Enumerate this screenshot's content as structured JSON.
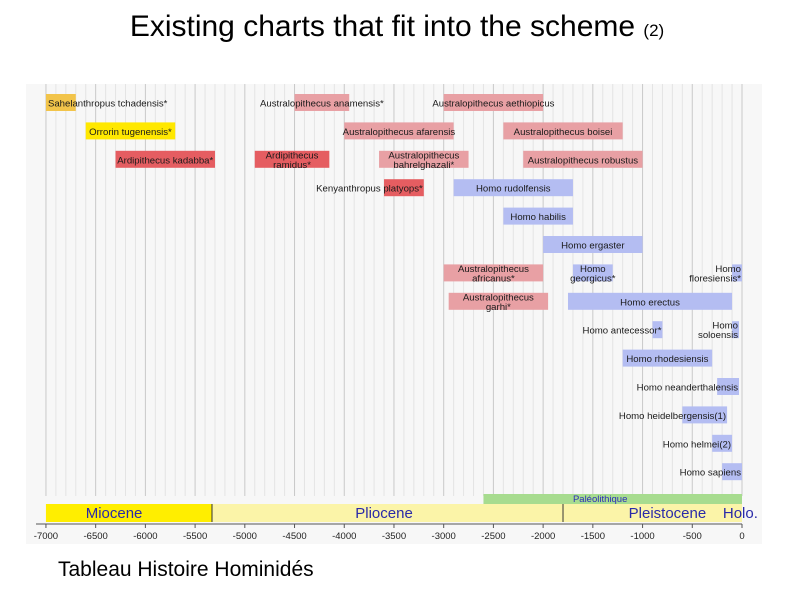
{
  "title": "Existing charts that fit into the scheme",
  "title_note": "(2)",
  "caption": "Tableau Histoire Hominidés",
  "chart_data": {
    "type": "timeline",
    "xlim": [
      -7100,
      0
    ],
    "grid": true,
    "x_ticks": [
      -7000,
      -6500,
      -6000,
      -5500,
      -5000,
      -4500,
      -4000,
      -3500,
      -3000,
      -2500,
      -2000,
      -1500,
      -1000,
      -500,
      0
    ],
    "colors": {
      "early_hominin": "#f2c44a",
      "orrorin": "#ffe800",
      "australopith": "#e8a0a4",
      "australopith_dark": "#e55d61",
      "homo": "#b4bdf2",
      "epoch_miocene": "#ffee00",
      "epoch_light": "#fbf4a8",
      "paleolithic": "#a7dc8f"
    },
    "species": [
      {
        "label": "Sahelanthropus tchadensis*",
        "start": -7000,
        "end": -6700,
        "row": 0,
        "color": "early_hominin",
        "align": "start"
      },
      {
        "label": "Australopithecus anamensis*",
        "start": -4500,
        "end": -3950,
        "row": 0,
        "color": "australopith",
        "align": "middle"
      },
      {
        "label": "Australopithecus aethiopicus",
        "start": -3000,
        "end": -2000,
        "row": 0,
        "color": "australopith",
        "align": "middle"
      },
      {
        "label": "Orrorin tugenensis*",
        "start": -6600,
        "end": -5700,
        "row": 1,
        "color": "orrorin",
        "align": "middle"
      },
      {
        "label": "Australopithecus afarensis",
        "start": -4000,
        "end": -2900,
        "row": 1,
        "color": "australopith",
        "align": "middle"
      },
      {
        "label": "Australopithecus boisei",
        "start": -2400,
        "end": -1200,
        "row": 1,
        "color": "australopith",
        "align": "middle"
      },
      {
        "label": "Ardipithecus kadabba*",
        "start": -6300,
        "end": -5300,
        "row": 2,
        "color": "australopith_dark",
        "align": "middle"
      },
      {
        "label": "Ardipithecus",
        "label2": "ramidus*",
        "start": -4900,
        "end": -4150,
        "row": 2,
        "color": "australopith_dark",
        "align": "middle"
      },
      {
        "label": "Australopithecus",
        "label2": "bahrelghazali*",
        "start": -3650,
        "end": -2750,
        "row": 2,
        "color": "australopith",
        "align": "middle"
      },
      {
        "label": "Australopithecus robustus",
        "start": -2200,
        "end": -1000,
        "row": 2,
        "color": "australopith",
        "align": "middle"
      },
      {
        "label": "Kenyanthropus platyops*",
        "start": -3600,
        "end": -3200,
        "row": 3,
        "color": "australopith_dark",
        "align": "end"
      },
      {
        "label": "Homo rudolfensis",
        "start": -2900,
        "end": -1700,
        "row": 3,
        "color": "homo",
        "align": "middle"
      },
      {
        "label": "Homo habilis",
        "start": -2400,
        "end": -1700,
        "row": 4,
        "color": "homo",
        "align": "middle"
      },
      {
        "label": "Homo ergaster",
        "start": -2000,
        "end": -1000,
        "row": 5,
        "color": "homo",
        "align": "middle"
      },
      {
        "label": "Australopithecus",
        "label2": "africanus*",
        "start": -3000,
        "end": -2000,
        "row": 6,
        "color": "australopith",
        "align": "middle"
      },
      {
        "label": "Homo",
        "label2": "georgicus*",
        "start": -1700,
        "end": -1300,
        "row": 6,
        "color": "homo",
        "align": "middle"
      },
      {
        "label": "Homo",
        "label2": "floresiensis*",
        "start": -100,
        "end": 0,
        "row": 6,
        "color": "homo",
        "align": "end"
      },
      {
        "label": "Australopithecus",
        "label2": "garhi*",
        "start": -2950,
        "end": -1950,
        "row": 7,
        "color": "australopith",
        "align": "middle"
      },
      {
        "label": "Homo erectus",
        "start": -1750,
        "end": -100,
        "row": 7,
        "color": "homo",
        "align": "middle"
      },
      {
        "label": "Homo antecessor*",
        "start": -900,
        "end": -800,
        "row": 8,
        "color": "homo",
        "align": "end"
      },
      {
        "label": "Homo",
        "label2": "soloensis",
        "start": -100,
        "end": -30,
        "row": 8,
        "color": "homo",
        "align": "end"
      },
      {
        "label": "Homo rhodesiensis",
        "start": -1200,
        "end": -300,
        "row": 9,
        "color": "homo",
        "align": "middle"
      },
      {
        "label": "Homo neanderthalensis",
        "start": -250,
        "end": -30,
        "row": 10,
        "color": "homo",
        "align": "end"
      },
      {
        "label": "Homo heidelbergensis(1)",
        "start": -600,
        "end": -150,
        "row": 11,
        "color": "homo",
        "align": "end"
      },
      {
        "label": "Homo helmei(2)",
        "start": -300,
        "end": -100,
        "row": 12,
        "color": "homo",
        "align": "end"
      },
      {
        "label": "Homo sapiens",
        "start": -200,
        "end": 0,
        "row": 13,
        "color": "homo",
        "align": "end"
      }
    ],
    "epochs": [
      {
        "name": "Miocene",
        "start": -7000,
        "end": -5330,
        "color": "epoch_miocene"
      },
      {
        "name": "Pliocene",
        "start": -5330,
        "end": -1800,
        "color": "epoch_light"
      },
      {
        "name": "Pleistocene",
        "start": -1800,
        "end": -10,
        "color": "epoch_light"
      },
      {
        "name": "Holo.",
        "start": -10,
        "end": 0,
        "color": "epoch_light"
      }
    ],
    "paleolithic": {
      "name": "Paléolithique",
      "start": -2600,
      "end": 0
    }
  }
}
